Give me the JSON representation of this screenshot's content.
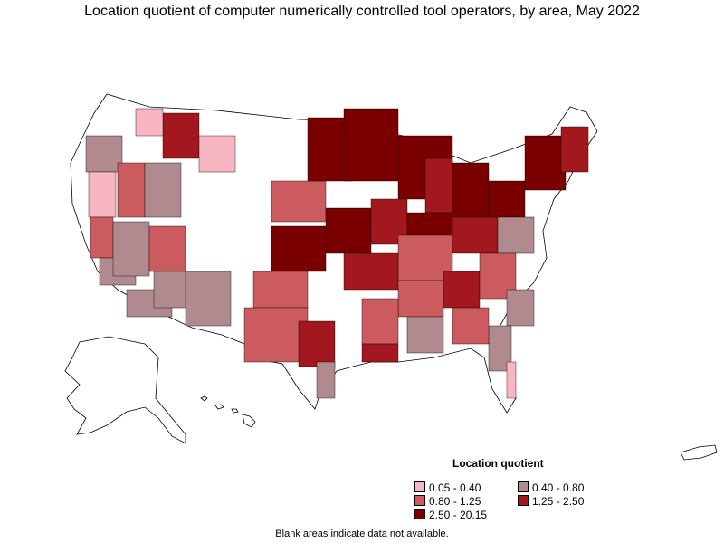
{
  "title": "Location quotient of computer numerically controlled tool operators, by area, May 2022",
  "legend": {
    "title": "Location quotient",
    "items": [
      {
        "label": "0.05 - 0.40",
        "color": "#f7b6c1"
      },
      {
        "label": "0.40 - 0.80",
        "color": "#b08a8f"
      },
      {
        "label": "0.80 - 1.25",
        "color": "#cc5b5f"
      },
      {
        "label": "1.25 - 2.50",
        "color": "#a3181e"
      },
      {
        "label": "2.50 - 20.15",
        "color": "#7a0000"
      }
    ]
  },
  "note": "Blank areas indicate data not available.",
  "colors": {
    "outline": "#000000",
    "no_data": "#ffffff"
  }
}
